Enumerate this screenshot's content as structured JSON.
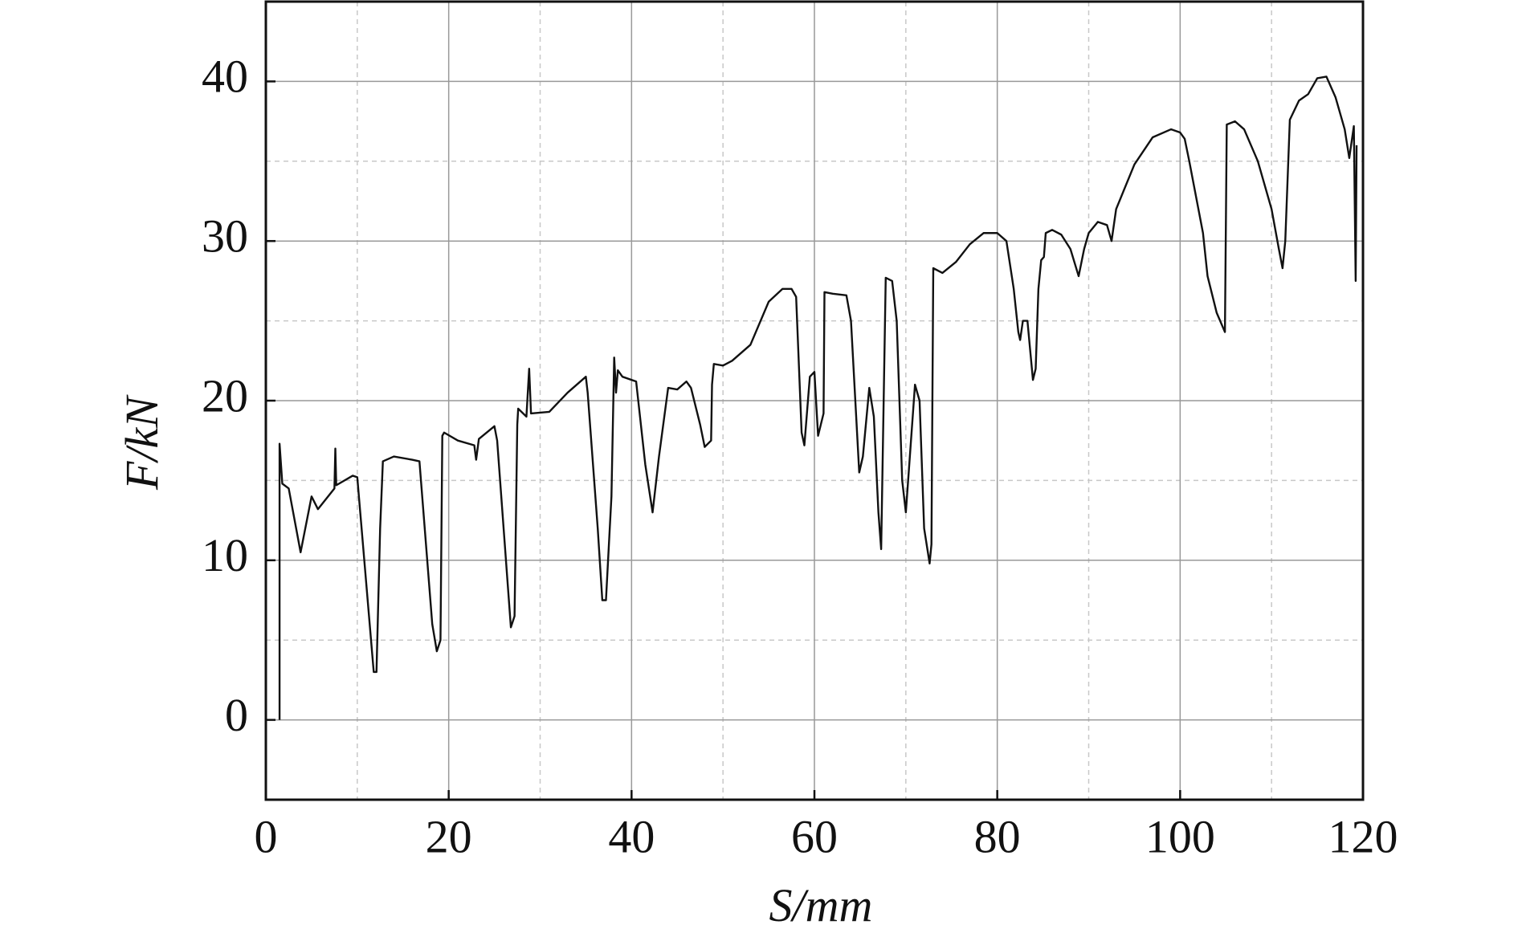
{
  "chart_data": {
    "type": "line",
    "x_label": "S/mm",
    "y_label": "F/kN",
    "xlim": [
      0,
      120
    ],
    "ylim": [
      -5,
      45
    ],
    "xticks": [
      0,
      20,
      40,
      60,
      80,
      100,
      120
    ],
    "yticks": [
      0,
      10,
      20,
      30,
      40
    ],
    "x_minor_grid": [
      10,
      30,
      50,
      70,
      90,
      110
    ],
    "y_minor_grid": [
      5,
      15,
      25,
      35
    ],
    "grid": true,
    "color": "#111111",
    "x": [
      1.5,
      1.5,
      1.8,
      2.5,
      3.8,
      5,
      5.7,
      7.5,
      7.6,
      7.7,
      9.5,
      10,
      11.8,
      12.1,
      12.5,
      12.8,
      14,
      16,
      16.8,
      18.2,
      18.7,
      19.1,
      19.3,
      19.5,
      21,
      22.8,
      23,
      23.3,
      25,
      25.3,
      26.8,
      27.2,
      27.5,
      27.6,
      28.5,
      28.8,
      29,
      31,
      33,
      35,
      35.2,
      36.3,
      36.8,
      37.2,
      37.8,
      38.1,
      38.3,
      38.5,
      39,
      40.5,
      41.5,
      42.3,
      43,
      44,
      45,
      46,
      46.5,
      47.5,
      48,
      48.7,
      48.8,
      49,
      50,
      51,
      53,
      55,
      56.5,
      57.5,
      58,
      58.6,
      58.9,
      59.5,
      60,
      60.4,
      61,
      61.1,
      62,
      63.5,
      64,
      64.9,
      65.3,
      66,
      66.5,
      67,
      67.3,
      67.8,
      68.5,
      69,
      69.6,
      70,
      70.5,
      71,
      71.5,
      72,
      72.6,
      72.8,
      73,
      74,
      75.5,
      77,
      78.5,
      80,
      81,
      81.8,
      82.3,
      82.5,
      82.8,
      83.3,
      83.9,
      84.2,
      84.5,
      84.8,
      85.1,
      85.3,
      86,
      87,
      88,
      88.9,
      89.5,
      90,
      91,
      92,
      92.5,
      93,
      95,
      97,
      99,
      100,
      100.5,
      101,
      101.5,
      102.5,
      103,
      104,
      104.9,
      105.1,
      106,
      107,
      108.5,
      110,
      110.8,
      111.2,
      111.5,
      112,
      113,
      114,
      115,
      116,
      117,
      118,
      118.5,
      119,
      119.2,
      119.3
    ],
    "values": [
      0,
      17.3,
      14.8,
      14.5,
      10.5,
      14,
      13.2,
      14.5,
      17,
      14.7,
      15.3,
      15.2,
      3,
      3,
      12,
      16.2,
      16.5,
      16.3,
      16.2,
      6,
      4.3,
      5,
      17.8,
      18,
      17.5,
      17.2,
      16.3,
      17.6,
      18.4,
      17.5,
      5.8,
      6.5,
      18.5,
      19.5,
      19,
      22,
      19.2,
      19.3,
      20.5,
      21.5,
      20.5,
      12,
      7.5,
      7.5,
      14,
      22.7,
      20.5,
      21.9,
      21.5,
      21.2,
      16,
      13,
      16.5,
      20.8,
      20.7,
      21.2,
      20.8,
      18.5,
      17.1,
      17.5,
      21,
      22.3,
      22.2,
      22.5,
      23.5,
      26.2,
      27,
      27,
      26.5,
      18,
      17.2,
      21.5,
      21.8,
      17.8,
      19.2,
      26.8,
      26.7,
      26.6,
      25,
      15.5,
      16.5,
      20.8,
      19,
      13,
      10.7,
      27.7,
      27.5,
      25,
      15,
      13,
      17,
      21,
      20,
      12,
      9.8,
      11,
      28.3,
      28,
      28.7,
      29.8,
      30.5,
      30.5,
      30,
      27,
      24.3,
      23.8,
      25,
      25,
      21.3,
      22,
      27,
      28.8,
      29,
      30.5,
      30.7,
      30.4,
      29.5,
      27.8,
      29.5,
      30.5,
      31.2,
      31,
      30,
      32,
      34.8,
      36.5,
      37,
      36.8,
      36.4,
      35,
      33.5,
      30.5,
      27.8,
      25.5,
      24.3,
      37.3,
      37.5,
      37,
      35,
      32,
      29.5,
      28.3,
      30,
      37.6,
      38.8,
      39.2,
      40.2,
      40.3,
      39,
      37,
      35.2,
      37.2,
      27.5,
      36
    ]
  }
}
